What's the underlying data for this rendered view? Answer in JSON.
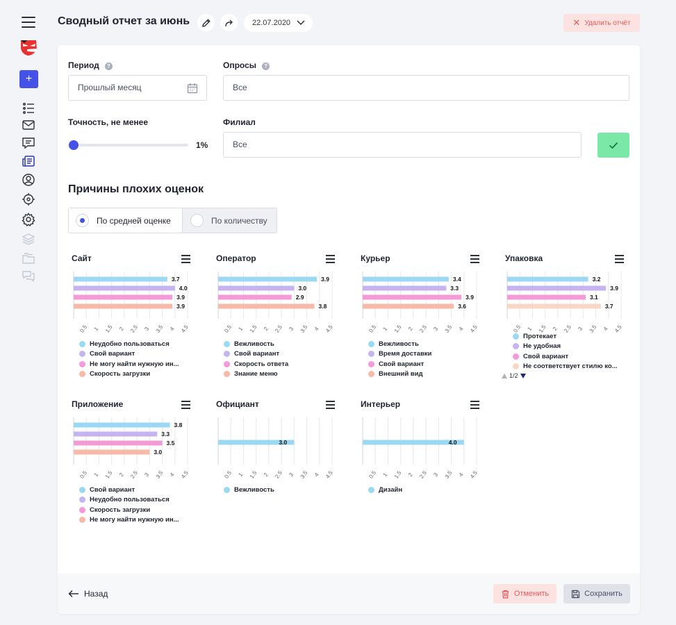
{
  "header": {
    "title": "Сводный отчет за июнь",
    "date": "22.07.2020",
    "delete_label": "Удалить отчёт"
  },
  "sidebar": {
    "add_label": "+",
    "icons": [
      "list-icon",
      "mail-icon",
      "chat-icon",
      "reports-icon",
      "user-icon",
      "target-icon",
      "settings-icon",
      "layers-icon",
      "folders-icon",
      "messages-icon"
    ]
  },
  "filters": {
    "period_label": "Период",
    "period_value": "Прошлый месяц",
    "surveys_label": "Опросы",
    "surveys_value": "Все",
    "accuracy_label": "Точность, не менее",
    "accuracy_value": "1%",
    "branch_label": "Филиал",
    "branch_value": "Все"
  },
  "section": {
    "title": "Причины плохих оценок",
    "mode_average": "По средней оценке",
    "mode_count": "По количеству"
  },
  "colors": {
    "blue": "#9ad8f4",
    "violet": "#c6b3f2",
    "pink": "#f49ad6",
    "salmon": "#f7b9a8",
    "peach": "#f9d7c5",
    "accent": "#4452e8",
    "success": "#7ce8a7",
    "danger": "#e05a5a"
  },
  "chart_data": [
    {
      "type": "bar",
      "title": "Сайт",
      "ticks": [
        "0.5",
        "1",
        "1.5",
        "2",
        "2.5",
        "3",
        "3.5",
        "4",
        "4.5"
      ],
      "xlim": [
        0,
        4.5
      ],
      "categories": [
        "Неудобно пользоваться",
        "Свой вариант",
        "Не могу найти нужную ин...",
        "Скорость загрузки"
      ],
      "values": [
        3.7,
        4.0,
        3.9,
        3.9
      ],
      "colors": [
        "#9ad8f4",
        "#c6b3f2",
        "#f49ad6",
        "#f7b9a8"
      ]
    },
    {
      "type": "bar",
      "title": "Оператор",
      "ticks": [
        "0.5",
        "1",
        "1.5",
        "2",
        "2.5",
        "3",
        "3.5",
        "4",
        "4.5"
      ],
      "xlim": [
        0,
        4.5
      ],
      "categories": [
        "Вежливость",
        "Свой вариант",
        "Скорость ответа",
        "Знание меню"
      ],
      "values": [
        3.9,
        3.0,
        2.9,
        3.8
      ],
      "colors": [
        "#9ad8f4",
        "#c6b3f2",
        "#f49ad6",
        "#f7b9a8"
      ]
    },
    {
      "type": "bar",
      "title": "Курьер",
      "ticks": [
        "0.5",
        "1",
        "1.5",
        "2",
        "2.5",
        "3",
        "3.5",
        "4",
        "4.5"
      ],
      "xlim": [
        0,
        4.5
      ],
      "categories": [
        "Вежливость",
        "Время доставки",
        "Свой вариант",
        "Внешний вид"
      ],
      "values": [
        3.4,
        3.3,
        3.9,
        3.6
      ],
      "colors": [
        "#9ad8f4",
        "#c6b3f2",
        "#f49ad6",
        "#f7b9a8"
      ]
    },
    {
      "type": "bar",
      "title": "Упаковка",
      "ticks": [
        "0.5",
        "1",
        "1.5",
        "2",
        "2.5",
        "3",
        "3.5",
        "4",
        "4.5"
      ],
      "xlim": [
        0,
        4.5
      ],
      "categories": [
        "Протекает",
        "Не удобная",
        "Свой вариант",
        "Не соответствует стилю ко..."
      ],
      "values": [
        3.2,
        3.9,
        3.1,
        3.7
      ],
      "colors": [
        "#9ad8f4",
        "#c6b3f2",
        "#f49ad6",
        "#f9d7c5"
      ],
      "pager": "1/2"
    },
    {
      "type": "bar",
      "title": "Приложение",
      "ticks": [
        "0.5",
        "1",
        "1.5",
        "2",
        "2.5",
        "3",
        "3.5",
        "4",
        "4.5"
      ],
      "xlim": [
        0,
        4.5
      ],
      "categories": [
        "Свой вариант",
        "Неудобно пользоваться",
        "Скорость загрузки",
        "Не могу найти нужную ин..."
      ],
      "values": [
        3.8,
        3.3,
        3.5,
        3.0
      ],
      "colors": [
        "#9ad8f4",
        "#c6b3f2",
        "#f49ad6",
        "#f7b9a8"
      ]
    },
    {
      "type": "bar",
      "title": "Официант",
      "ticks": [
        "0.5",
        "1",
        "1.5",
        "2",
        "2.5",
        "3",
        "3.5",
        "4",
        "4.5"
      ],
      "xlim": [
        0,
        4.5
      ],
      "categories": [
        "Вежливость"
      ],
      "values": [
        3.0
      ],
      "colors": [
        "#9ad8f4"
      ]
    },
    {
      "type": "bar",
      "title": "Интерьер",
      "ticks": [
        "0.5",
        "1",
        "1.5",
        "2",
        "2.5",
        "3",
        "3.5",
        "4",
        "4.5"
      ],
      "xlim": [
        0,
        4.5
      ],
      "categories": [
        "Дизайн"
      ],
      "values": [
        4.0
      ],
      "colors": [
        "#9ad8f4"
      ]
    }
  ],
  "footer": {
    "back_label": "Назад",
    "cancel_label": "Отменить",
    "save_label": "Сохранить"
  }
}
